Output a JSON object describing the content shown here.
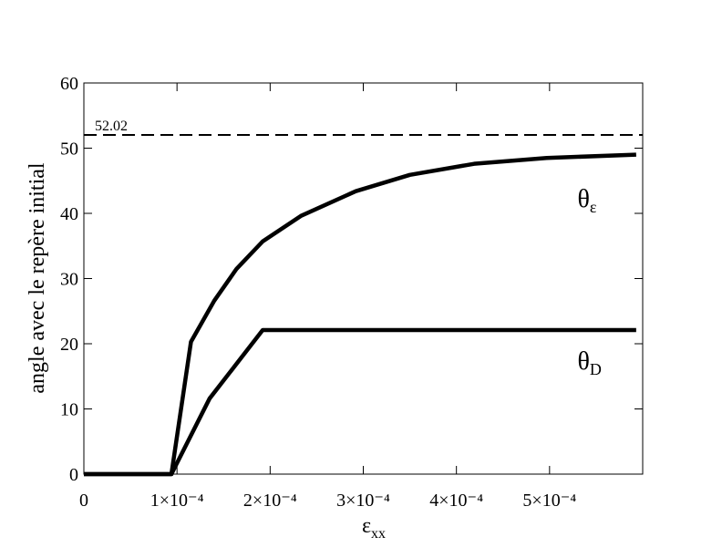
{
  "chart_data": {
    "type": "line",
    "x_label": {
      "text": "ε",
      "subscript": "xx"
    },
    "y_label": "angle avec le repère initial",
    "xlim": [
      0,
      0.0006
    ],
    "ylim": [
      0,
      60
    ],
    "xticks": [
      0,
      {
        "value": 0.0001,
        "label": "1×10⁻⁴"
      },
      {
        "value": 0.0002,
        "label": "2×10⁻⁴"
      },
      {
        "value": 0.0003,
        "label": "3×10⁻⁴"
      },
      {
        "value": 0.0004,
        "label": "4×10⁻⁴"
      },
      {
        "value": 0.0005,
        "label": "5×10⁻⁴"
      }
    ],
    "yticks": [
      0,
      10,
      20,
      30,
      40,
      50,
      60
    ],
    "hline": {
      "value": 52.02,
      "label": "52.02",
      "style": "dashed"
    },
    "series": [
      {
        "name": {
          "text": "θ",
          "subscript": "ε"
        },
        "color": "#000000",
        "x": [
          0,
          9.4e-05,
          0.000115,
          0.00014,
          0.000164,
          0.000192,
          0.000233,
          0.000292,
          0.00035,
          0.000419,
          0.000497,
          0.000593
        ],
        "values": [
          0,
          0,
          20.3,
          26.6,
          31.5,
          35.7,
          39.6,
          43.4,
          45.9,
          47.6,
          48.5,
          49
        ]
      },
      {
        "name": {
          "text": "θ",
          "subscript": "D"
        },
        "color": "#000000",
        "x": [
          0,
          9.4e-05,
          0.000135,
          0.000192,
          0.000593
        ],
        "values": [
          0,
          0,
          11.6,
          22.1,
          22.1
        ]
      }
    ]
  }
}
